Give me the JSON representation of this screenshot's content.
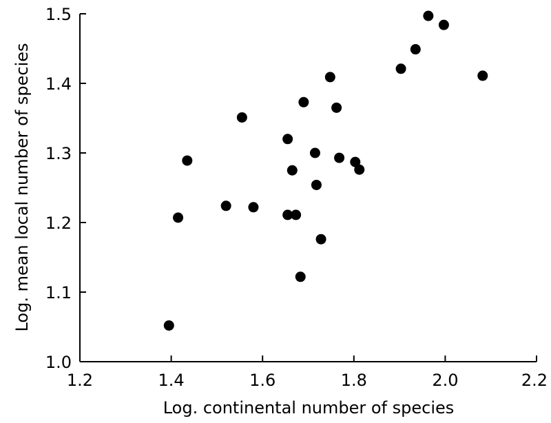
{
  "chart_data": {
    "type": "scatter",
    "title": "",
    "xlabel": "Log. continental number of species",
    "ylabel": "Log. mean local number of species",
    "xlim": [
      1.2,
      2.2
    ],
    "ylim": [
      1.0,
      1.5
    ],
    "xticks": [
      "1.2",
      "1.4",
      "1.6",
      "1.8",
      "2.0",
      "2.2"
    ],
    "yticks": [
      "1.0",
      "1.1",
      "1.2",
      "1.3",
      "1.4",
      "1.5"
    ],
    "grid": false,
    "legend": "none",
    "marker_color": "#000000",
    "points": [
      {
        "x": 1.395,
        "y": 1.052
      },
      {
        "x": 1.415,
        "y": 1.207
      },
      {
        "x": 1.435,
        "y": 1.289
      },
      {
        "x": 1.52,
        "y": 1.224
      },
      {
        "x": 1.555,
        "y": 1.351
      },
      {
        "x": 1.58,
        "y": 1.222
      },
      {
        "x": 1.655,
        "y": 1.32
      },
      {
        "x": 1.655,
        "y": 1.211
      },
      {
        "x": 1.665,
        "y": 1.275
      },
      {
        "x": 1.673,
        "y": 1.211
      },
      {
        "x": 1.683,
        "y": 1.122
      },
      {
        "x": 1.69,
        "y": 1.373
      },
      {
        "x": 1.715,
        "y": 1.3
      },
      {
        "x": 1.718,
        "y": 1.254
      },
      {
        "x": 1.728,
        "y": 1.176
      },
      {
        "x": 1.748,
        "y": 1.409
      },
      {
        "x": 1.762,
        "y": 1.365
      },
      {
        "x": 1.768,
        "y": 1.293
      },
      {
        "x": 1.803,
        "y": 1.287
      },
      {
        "x": 1.812,
        "y": 1.276
      },
      {
        "x": 1.903,
        "y": 1.421
      },
      {
        "x": 1.935,
        "y": 1.449
      },
      {
        "x": 1.963,
        "y": 1.497
      },
      {
        "x": 1.997,
        "y": 1.484
      },
      {
        "x": 2.082,
        "y": 1.411
      }
    ]
  }
}
